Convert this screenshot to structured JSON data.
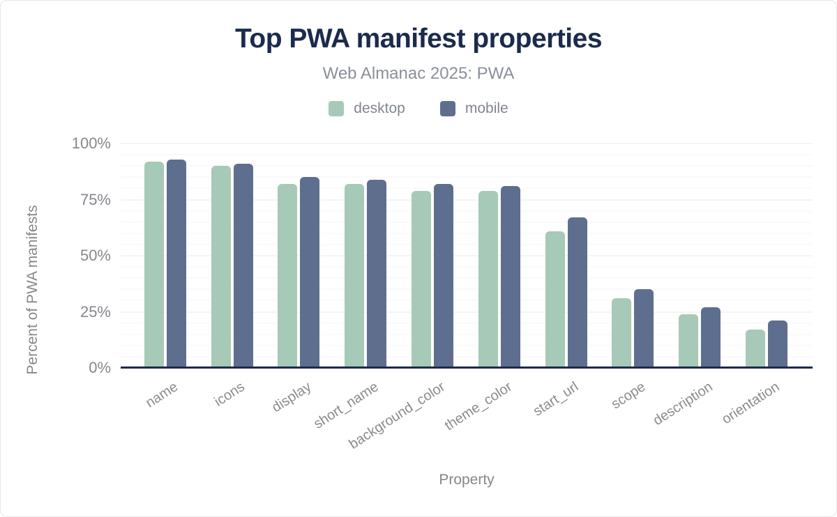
{
  "figure": {
    "title": "Top PWA manifest properties",
    "subtitle": "Web Almanac 2025: PWA"
  },
  "chart_data": {
    "type": "bar",
    "title": "Top PWA manifest properties",
    "subtitle": "Web Almanac 2025: PWA",
    "categories": [
      "name",
      "icons",
      "display",
      "short_name",
      "background_color",
      "theme_color",
      "start_url",
      "scope",
      "description",
      "orientation"
    ],
    "series": [
      {
        "name": "desktop",
        "color": "#a7c9b8",
        "values": [
          92,
          90,
          82,
          82,
          79,
          79,
          61,
          31,
          24,
          17
        ]
      },
      {
        "name": "mobile",
        "color": "#5e6e8e",
        "values": [
          93,
          91,
          85,
          84,
          82,
          81,
          67,
          35,
          27,
          21
        ]
      }
    ],
    "xlabel": "Property",
    "ylabel": "Percent of PWA manifests",
    "ylim": [
      0,
      100
    ],
    "unit": "%",
    "yticks": [
      {
        "label": "0%",
        "value": 0
      },
      {
        "label": "25%",
        "value": 25
      },
      {
        "label": "50%",
        "value": 50
      },
      {
        "label": "75%",
        "value": 75
      },
      {
        "label": "100%",
        "value": 100
      }
    ],
    "grid": {
      "minor_step": 5,
      "major_step": 25,
      "orientation": "horizontal"
    },
    "legend_position": "top"
  },
  "colors": {
    "title": "#1a2b4c",
    "axis_line": "#1c2b47",
    "axis_text": "#85878c",
    "gridline_minor": "#f5f5f7",
    "gridline_major": "#e8e9ec",
    "desktop": "#a7c9b8",
    "mobile": "#5e6e8e"
  }
}
